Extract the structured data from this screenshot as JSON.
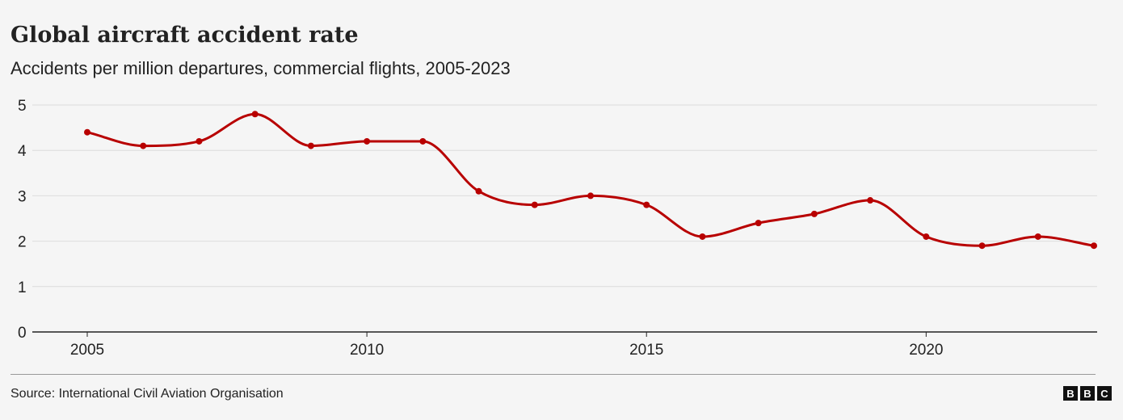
{
  "chart_data": {
    "type": "line",
    "title": "Global aircraft accident rate",
    "subtitle": "Accidents per million departures, commercial flights, 2005-2023",
    "x": [
      2005,
      2006,
      2007,
      2008,
      2009,
      2010,
      2011,
      2012,
      2013,
      2014,
      2015,
      2016,
      2017,
      2018,
      2019,
      2020,
      2021,
      2022,
      2023
    ],
    "values": [
      4.4,
      4.1,
      4.2,
      4.8,
      4.1,
      4.2,
      4.2,
      3.1,
      2.8,
      3.0,
      2.8,
      2.1,
      2.4,
      2.6,
      2.9,
      2.1,
      1.9,
      2.1,
      1.9
    ],
    "xticks": [
      "2005",
      "2010",
      "2015",
      "2020"
    ],
    "yticks": [
      "0",
      "1",
      "2",
      "3",
      "4",
      "5"
    ],
    "xlim": [
      2005,
      2023
    ],
    "ylim": [
      0,
      5
    ],
    "grid": "horizontal",
    "line_color": "#b80000"
  },
  "footer": {
    "source": "Source: International Civil Aviation Organisation",
    "logo": [
      "B",
      "B",
      "C"
    ]
  }
}
